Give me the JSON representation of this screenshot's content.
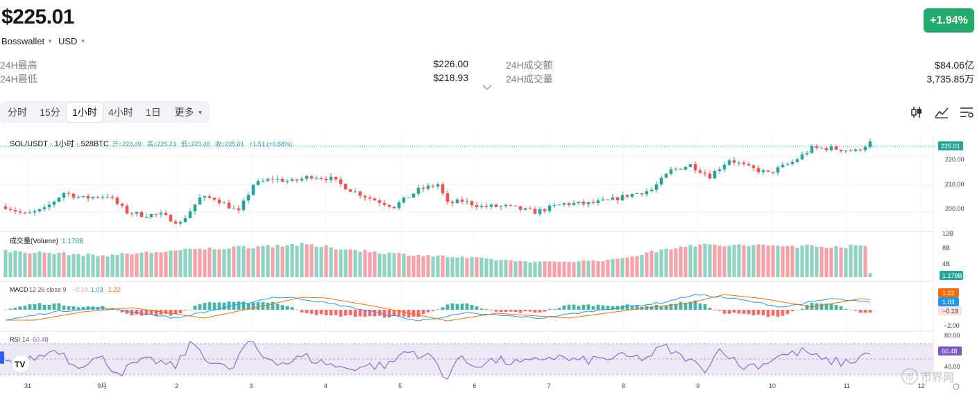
{
  "header": {
    "price": "$225.01",
    "exchange": "Bosswallet",
    "currency": "USD",
    "change": "+1.94%"
  },
  "stats": {
    "high_label": "24H最高",
    "high_value": "$226.00",
    "low_label": "24H最低",
    "low_value": "$218.93",
    "turnover_label": "24H成交额",
    "turnover_value": "$84.06亿",
    "volume_label": "24H成交量",
    "volume_value": "3,735.85万"
  },
  "tabs": [
    {
      "label": "分时"
    },
    {
      "label": "15分"
    },
    {
      "label": "1小时",
      "active": true
    },
    {
      "label": "4小时"
    },
    {
      "label": "1日"
    },
    {
      "label": "更多"
    }
  ],
  "toolbar_icons": [
    "candlestick-icon",
    "line-chart-icon",
    "settings-sliders-icon"
  ],
  "chart_data": {
    "type": "candlestick",
    "legend": {
      "symbol": "SOL/USDT · 1小时 · 528BTC",
      "open": "开=223.49",
      "high": "高=225.23",
      "low": "低=223.46",
      "close": "收=225.01",
      "change": "+1.51 (+0.68%)"
    },
    "price_axis": {
      "ticks": [
        "220.00",
        "210.00",
        "200.00"
      ],
      "last_label": "225.01",
      "ylim": [
        193.5,
        227.0
      ]
    },
    "x_labels": [
      "31",
      "9月",
      "2",
      "3",
      "4",
      "5",
      "6",
      "7",
      "8",
      "9",
      "10",
      "11",
      "12"
    ],
    "close_path": [
      [
        0,
        202
      ],
      [
        4,
        199
      ],
      [
        8,
        201
      ],
      [
        12,
        207
      ],
      [
        16,
        205
      ],
      [
        21,
        206
      ],
      [
        25,
        200
      ],
      [
        28,
        199
      ],
      [
        32,
        199
      ],
      [
        36,
        196
      ],
      [
        40,
        205
      ],
      [
        43,
        205
      ],
      [
        46,
        202
      ],
      [
        48,
        200
      ],
      [
        51,
        210
      ],
      [
        55,
        212
      ],
      [
        59,
        211
      ],
      [
        63,
        213
      ],
      [
        67,
        212
      ],
      [
        71,
        208
      ],
      [
        75,
        205
      ],
      [
        80,
        202
      ],
      [
        85,
        208
      ],
      [
        89,
        210
      ],
      [
        91,
        203
      ],
      [
        94,
        204
      ],
      [
        98,
        202
      ],
      [
        103,
        202
      ],
      [
        109,
        200
      ],
      [
        115,
        203
      ],
      [
        120,
        203
      ],
      [
        124,
        204
      ],
      [
        128,
        206
      ],
      [
        133,
        208
      ],
      [
        137,
        215
      ],
      [
        141,
        217
      ],
      [
        145,
        213
      ],
      [
        149,
        219
      ],
      [
        153,
        216
      ],
      [
        157,
        214
      ],
      [
        162,
        218
      ],
      [
        166,
        223
      ],
      [
        170,
        223
      ],
      [
        175,
        222
      ],
      [
        178,
        225
      ]
    ],
    "volume": {
      "label": "成交量(Volume)",
      "value": "1.178B",
      "ticks": [
        "12B",
        "8B",
        "4B"
      ],
      "last_label": "1.178B",
      "envelope": [
        [
          0,
          7
        ],
        [
          20,
          5.8
        ],
        [
          40,
          7.5
        ],
        [
          60,
          8.8
        ],
        [
          80,
          6.3
        ],
        [
          95,
          5.2
        ],
        [
          110,
          4.0
        ],
        [
          125,
          4.6
        ],
        [
          140,
          8.6
        ],
        [
          160,
          8.4
        ],
        [
          175,
          8.2
        ]
      ]
    },
    "macd": {
      "label": "MACD",
      "params": "12 26 close 9",
      "hist": "−0.19",
      "macd": "1.03",
      "signal": "1.22",
      "ticks": [
        "−2.00"
      ],
      "labels": [
        "1.22",
        "1.03",
        "−0.19"
      ],
      "path": [
        [
          0,
          -1.5
        ],
        [
          10,
          -0.3
        ],
        [
          20,
          0.3
        ],
        [
          35,
          -1.2
        ],
        [
          48,
          0.7
        ],
        [
          55,
          1.8
        ],
        [
          60,
          1.7
        ],
        [
          70,
          0.5
        ],
        [
          85,
          -1.6
        ],
        [
          95,
          -0.5
        ],
        [
          110,
          -1.2
        ],
        [
          125,
          0.2
        ],
        [
          135,
          1.0
        ],
        [
          142,
          2.2
        ],
        [
          150,
          1.6
        ],
        [
          160,
          0.4
        ],
        [
          170,
          1.6
        ],
        [
          178,
          1.03
        ]
      ]
    },
    "rsi": {
      "label": "RSI",
      "period": "14",
      "value": "60.48",
      "ticks": [
        "80.00",
        "40.00"
      ],
      "last_label": "60.48"
    },
    "watermark": "币界网",
    "colors": {
      "up": "#26a69a",
      "down": "#ef5350",
      "upVol": "#8fd3c3",
      "downVol": "#f5a3a8",
      "macd": "#2196f3",
      "signal": "#ff6d00",
      "rsi": "#7e57c2",
      "rsiBand": "#ede7f6"
    }
  }
}
